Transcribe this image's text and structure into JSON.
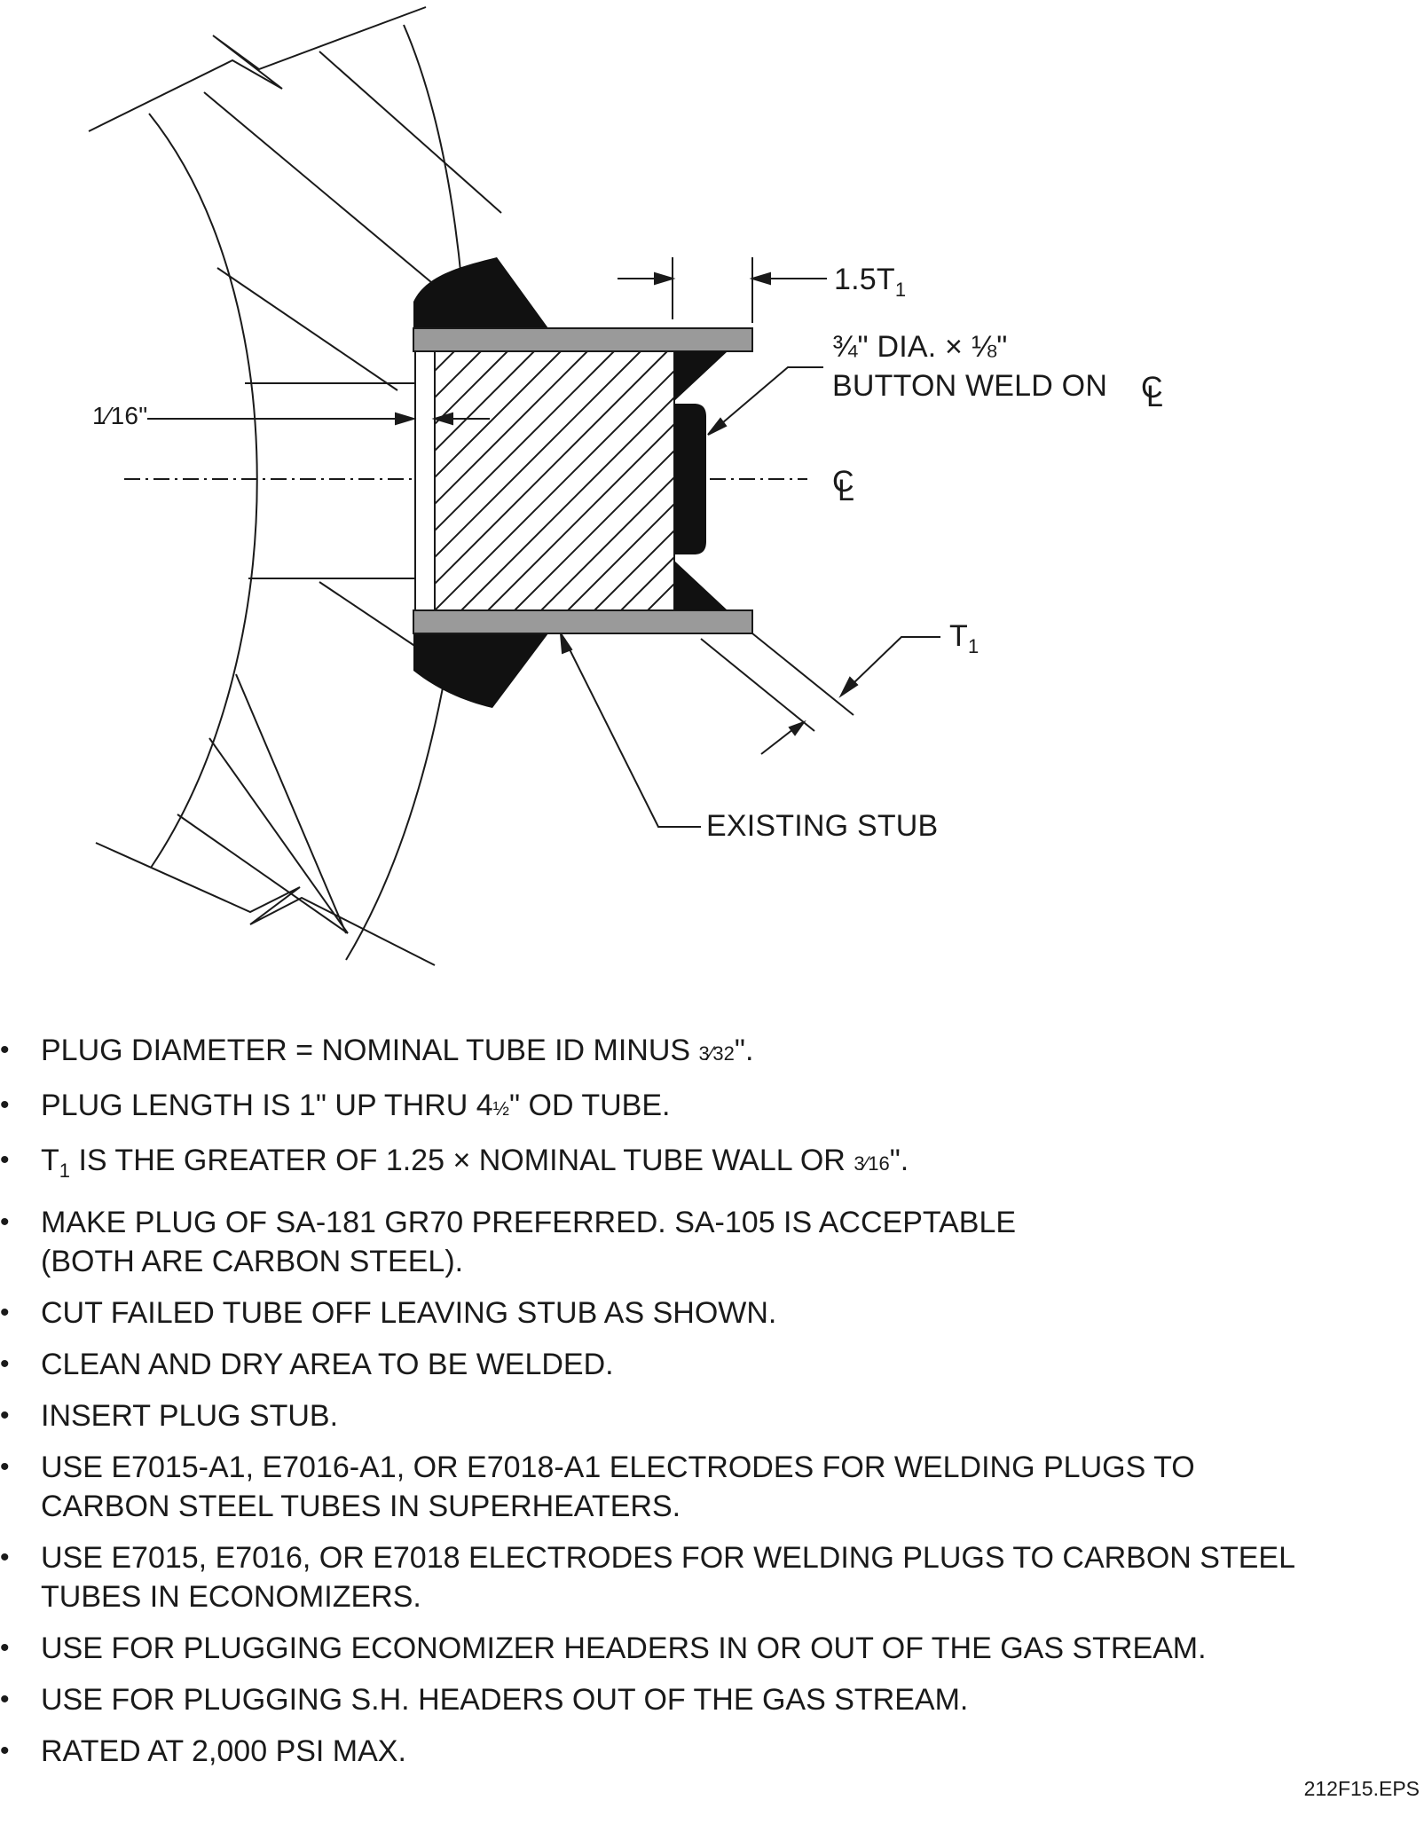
{
  "labels": {
    "dim_15t1": "1.5T",
    "dim_15t1_sub": "1",
    "button_weld_line1_a": "¾\" DIA. × ⅛\"",
    "button_weld_line2": "BUTTON WELD ON",
    "gap_dim": "1⁄16\"",
    "t1": "T",
    "t1_sub": "1",
    "existing_stub": "EXISTING STUB",
    "centerline_c": "C",
    "centerline_l": "L"
  },
  "notes": [
    {
      "pre": "PLUG DIAMETER = NOMINAL TUBE ID MINUS ",
      "frac": "3⁄32",
      "post": "\"."
    },
    {
      "pre": "PLUG LENGTH IS 1\" UP THRU 4",
      "frac": "½",
      "post": "\" OD TUBE."
    },
    {
      "pre": "T",
      "sub": "1",
      "mid": " IS THE GREATER OF 1.25 × NOMINAL TUBE WALL OR ",
      "frac": "3⁄16",
      "post": "\"."
    },
    {
      "text": "MAKE PLUG OF SA-181 GR70 PREFERRED. SA-105 IS ACCEPTABLE",
      "text2": "(BOTH ARE CARBON STEEL)."
    },
    {
      "text": "CUT FAILED TUBE OFF LEAVING STUB AS SHOWN."
    },
    {
      "text": "CLEAN AND DRY AREA TO BE WELDED."
    },
    {
      "text": "INSERT PLUG STUB."
    },
    {
      "text": "USE E7015-A1, E7016-A1, OR E7018-A1 ELECTRODES FOR WELDING PLUGS TO",
      "text2": "CARBON STEEL TUBES IN SUPERHEATERS."
    },
    {
      "text": "USE E7015, E7016, OR E7018 ELECTRODES FOR WELDING PLUGS TO CARBON STEEL",
      "text2": "TUBES IN ECONOMIZERS."
    },
    {
      "text": "USE FOR PLUGGING ECONOMIZER HEADERS IN OR OUT OF THE GAS STREAM."
    },
    {
      "text": "USE FOR PLUGGING S.H. HEADERS OUT OF THE GAS STREAM."
    },
    {
      "text": "RATED AT 2,000 PSI MAX."
    }
  ],
  "file_ref": "212F15.EPS",
  "colors": {
    "line": "#1a1a1a",
    "tube_wall": "#9a9a9a",
    "weld": "#111111"
  }
}
